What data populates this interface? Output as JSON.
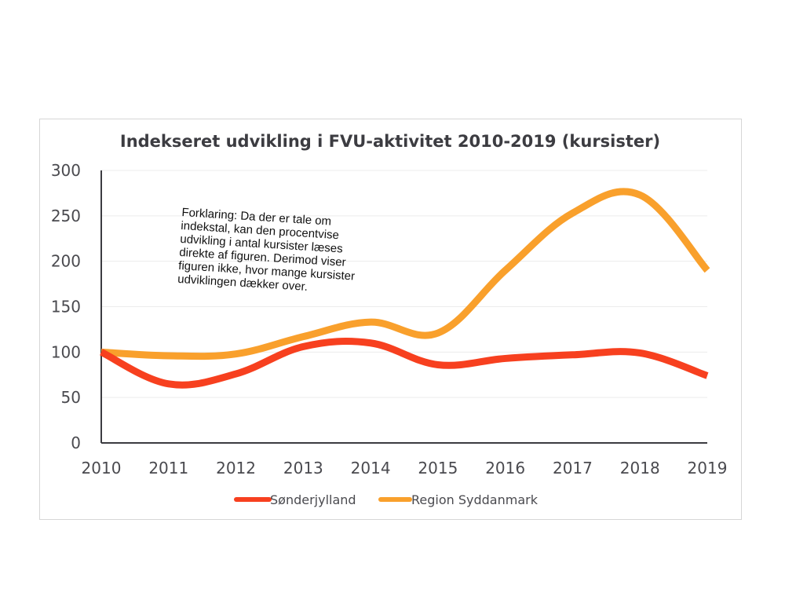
{
  "chart_data": {
    "type": "line",
    "title": "Indekseret udvikling i FVU-aktivitet 2010-2019 (kursister)",
    "xlabel": "",
    "ylabel": "",
    "x": [
      "2010",
      "2011",
      "2012",
      "2013",
      "2014",
      "2015",
      "2016",
      "2017",
      "2018",
      "2019"
    ],
    "ylim": [
      0,
      300
    ],
    "yticks": [
      "0",
      "50",
      "100",
      "150",
      "200",
      "250",
      "300"
    ],
    "grid": true,
    "legend_position": "bottom",
    "series": [
      {
        "name": "Sønderjylland",
        "color": "#f7401f",
        "values": [
          100,
          65,
          76,
          106,
          110,
          86,
          93,
          97,
          99,
          74
        ]
      },
      {
        "name": "Region Syddanmark",
        "color": "#f9a02c",
        "values": [
          100,
          96,
          98,
          117,
          133,
          121,
          190,
          253,
          273,
          190
        ]
      }
    ],
    "annotation": "Forklaring: Da der er tale om indekstal, kan den procentvise udvikling i antal kursister læses direkte af figuren. Derimod viser figuren ikke, hvor mange kursister udviklingen dækker over."
  }
}
